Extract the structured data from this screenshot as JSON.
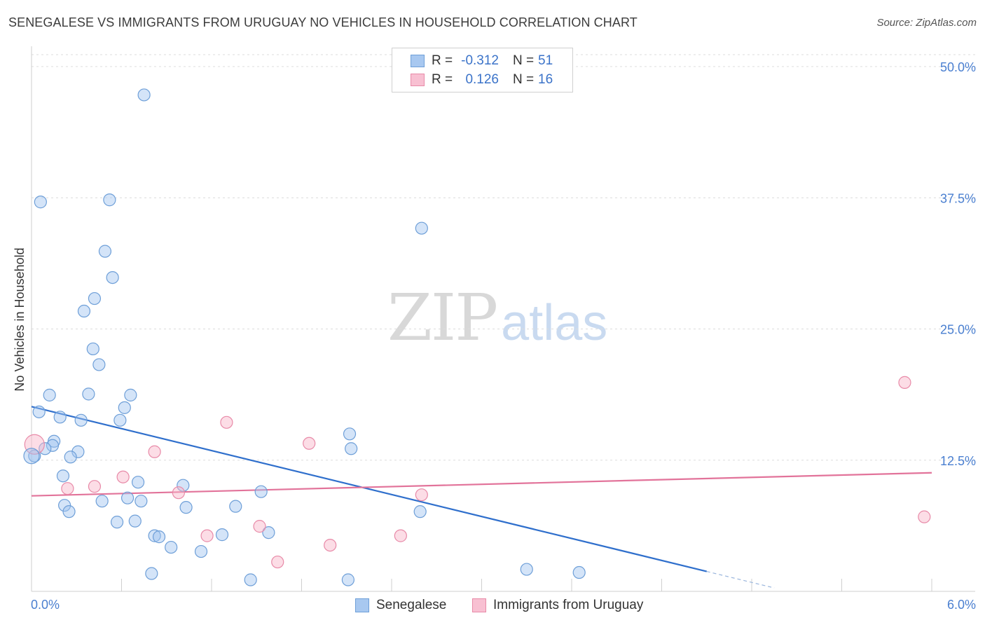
{
  "title": "SENEGALESE VS IMMIGRANTS FROM URUGUAY NO VEHICLES IN HOUSEHOLD CORRELATION CHART",
  "source": "Source: ZipAtlas.com",
  "watermark": {
    "zip": "ZIP",
    "atlas": "atlas"
  },
  "legend": {
    "rows": [
      {
        "r_label": "R =",
        "r_value": "-0.312",
        "n_label": "N =",
        "n_value": "51",
        "color": "#a8c8f0",
        "border": "#6e9fd8"
      },
      {
        "r_label": "R =",
        "r_value": "0.126",
        "n_label": "N =",
        "n_value": "16",
        "color": "#f8c0d2",
        "border": "#e88aa8"
      }
    ]
  },
  "bottom_legend": [
    {
      "label": "Senegalese",
      "color": "#a8c8f0",
      "border": "#6e9fd8"
    },
    {
      "label": "Immigrants from Uruguay",
      "color": "#f8c0d2",
      "border": "#e88aa8"
    }
  ],
  "chart_data": {
    "type": "scatter",
    "title": "SENEGALESE VS IMMIGRANTS FROM URUGUAY NO VEHICLES IN HOUSEHOLD CORRELATION CHART",
    "xlabel": "",
    "ylabel": "No Vehicles in Household",
    "xlim": [
      0,
      6
    ],
    "ylim": [
      0,
      50
    ],
    "x_tick_labels": [
      "0.0%",
      "6.0%"
    ],
    "y_ticks": [
      12.5,
      25.0,
      37.5,
      50.0
    ],
    "y_tick_labels": [
      "12.5%",
      "25.0%",
      "37.5%",
      "50.0%"
    ],
    "grid": true,
    "series": [
      {
        "name": "Senegalese",
        "color": "#6e9fd8",
        "points": [
          [
            0.75,
            47.3
          ],
          [
            0.06,
            37.1
          ],
          [
            0.52,
            37.3
          ],
          [
            0.49,
            32.4
          ],
          [
            0.54,
            29.9
          ],
          [
            0.42,
            27.9
          ],
          [
            0.35,
            26.7
          ],
          [
            0.41,
            23.1
          ],
          [
            0.45,
            21.6
          ],
          [
            0.12,
            18.7
          ],
          [
            0.38,
            18.8
          ],
          [
            0.66,
            18.7
          ],
          [
            0.62,
            17.5
          ],
          [
            0.05,
            17.1
          ],
          [
            0.19,
            16.6
          ],
          [
            0.33,
            16.3
          ],
          [
            0.59,
            16.3
          ],
          [
            0.15,
            14.3
          ],
          [
            0.14,
            13.9
          ],
          [
            0.09,
            13.6
          ],
          [
            0.31,
            13.3
          ],
          [
            0.26,
            12.8
          ],
          [
            0.02,
            12.9
          ],
          [
            0.21,
            11.0
          ],
          [
            0.71,
            10.4
          ],
          [
            1.01,
            10.1
          ],
          [
            0.22,
            8.2
          ],
          [
            0.47,
            8.6
          ],
          [
            0.64,
            8.9
          ],
          [
            0.73,
            8.6
          ],
          [
            0.25,
            7.6
          ],
          [
            1.03,
            8.0
          ],
          [
            1.36,
            8.1
          ],
          [
            0.57,
            6.6
          ],
          [
            0.69,
            6.7
          ],
          [
            0.82,
            5.3
          ],
          [
            0.85,
            5.2
          ],
          [
            1.27,
            5.4
          ],
          [
            1.58,
            5.6
          ],
          [
            0.93,
            4.2
          ],
          [
            1.13,
            3.8
          ],
          [
            0.8,
            1.7
          ],
          [
            1.46,
            1.1
          ],
          [
            2.11,
            1.1
          ],
          [
            1.53,
            9.5
          ],
          [
            2.59,
            7.6
          ],
          [
            2.12,
            15.0
          ],
          [
            2.13,
            13.6
          ],
          [
            2.6,
            34.6
          ],
          [
            3.3,
            2.1
          ],
          [
            3.65,
            1.8
          ]
        ]
      },
      {
        "name": "Immigrants from Uruguay",
        "color": "#e88aa8",
        "points": [
          [
            0.02,
            14.0
          ],
          [
            0.24,
            9.8
          ],
          [
            0.42,
            10.0
          ],
          [
            0.61,
            10.9
          ],
          [
            0.82,
            13.3
          ],
          [
            0.98,
            9.4
          ],
          [
            1.17,
            5.3
          ],
          [
            1.3,
            16.1
          ],
          [
            1.52,
            6.2
          ],
          [
            1.64,
            2.8
          ],
          [
            1.85,
            14.1
          ],
          [
            1.99,
            4.4
          ],
          [
            2.46,
            5.3
          ],
          [
            2.6,
            9.2
          ],
          [
            5.82,
            19.9
          ],
          [
            5.95,
            7.1
          ]
        ]
      }
    ],
    "trendlines": [
      {
        "series": "Senegalese",
        "x": [
          0,
          4.5
        ],
        "y": [
          17.6,
          1.9
        ],
        "dashed_extension_to_x": 4.95
      },
      {
        "series": "Immigrants from Uruguay",
        "x": [
          0,
          6.0
        ],
        "y": [
          9.1,
          11.3
        ]
      }
    ]
  }
}
